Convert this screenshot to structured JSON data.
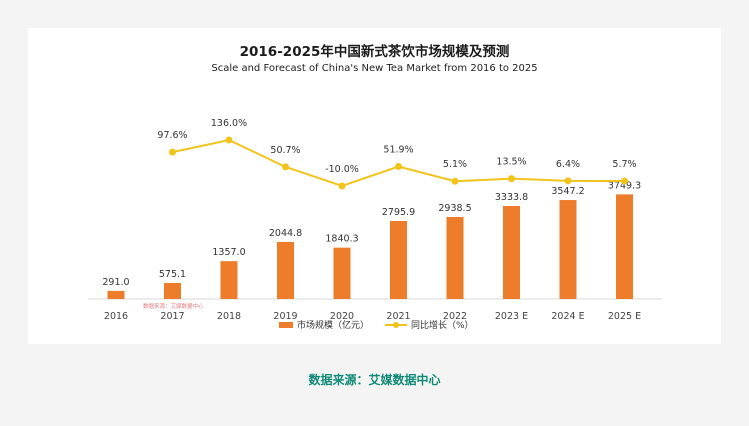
{
  "header": {
    "title": "2016-2025年中国新式茶饮市场规模及预测",
    "subtitle": "Scale and Forecast of China's New Tea Market from 2016 to 2025"
  },
  "footer": {
    "source": "数据来源：艾媒数据中心"
  },
  "watermark": "数据来源：艾媒数据中心",
  "colors": {
    "bar": "#ee7d2b",
    "line": "#f2c31b",
    "source_text": "#0f8a76"
  },
  "chart_data": {
    "type": "bar",
    "categories": [
      "2016",
      "2017",
      "2018",
      "2019",
      "2020",
      "2021",
      "2022",
      "2023 E",
      "2024 E",
      "2025 E"
    ],
    "series": [
      {
        "name": "市场规模（亿元）",
        "type": "bar",
        "values": [
          291.0,
          575.1,
          1357.0,
          2044.8,
          1840.3,
          2795.9,
          2938.5,
          3333.8,
          3547.2,
          3749.3
        ],
        "labels": [
          "291.0",
          "575.1",
          "1357.0",
          "2044.8",
          "1840.3",
          "2795.9",
          "2938.5",
          "3333.8",
          "3547.2",
          "3749.3"
        ]
      },
      {
        "name": "同比增长（%）",
        "type": "line",
        "values": [
          null,
          97.6,
          136.0,
          50.7,
          -10.0,
          51.9,
          5.1,
          13.5,
          6.4,
          5.7
        ],
        "labels": [
          "",
          "97.6%",
          "136.0%",
          "50.7%",
          "-10.0%",
          "51.9%",
          "5.1%",
          "13.5%",
          "6.4%",
          "5.7%"
        ]
      }
    ],
    "title": "2016-2025年中国新式茶饮市场规模及预测",
    "subtitle": "Scale and Forecast of China's New Tea Market from 2016 to 2025",
    "legend_position": "bottom",
    "grid": false
  }
}
